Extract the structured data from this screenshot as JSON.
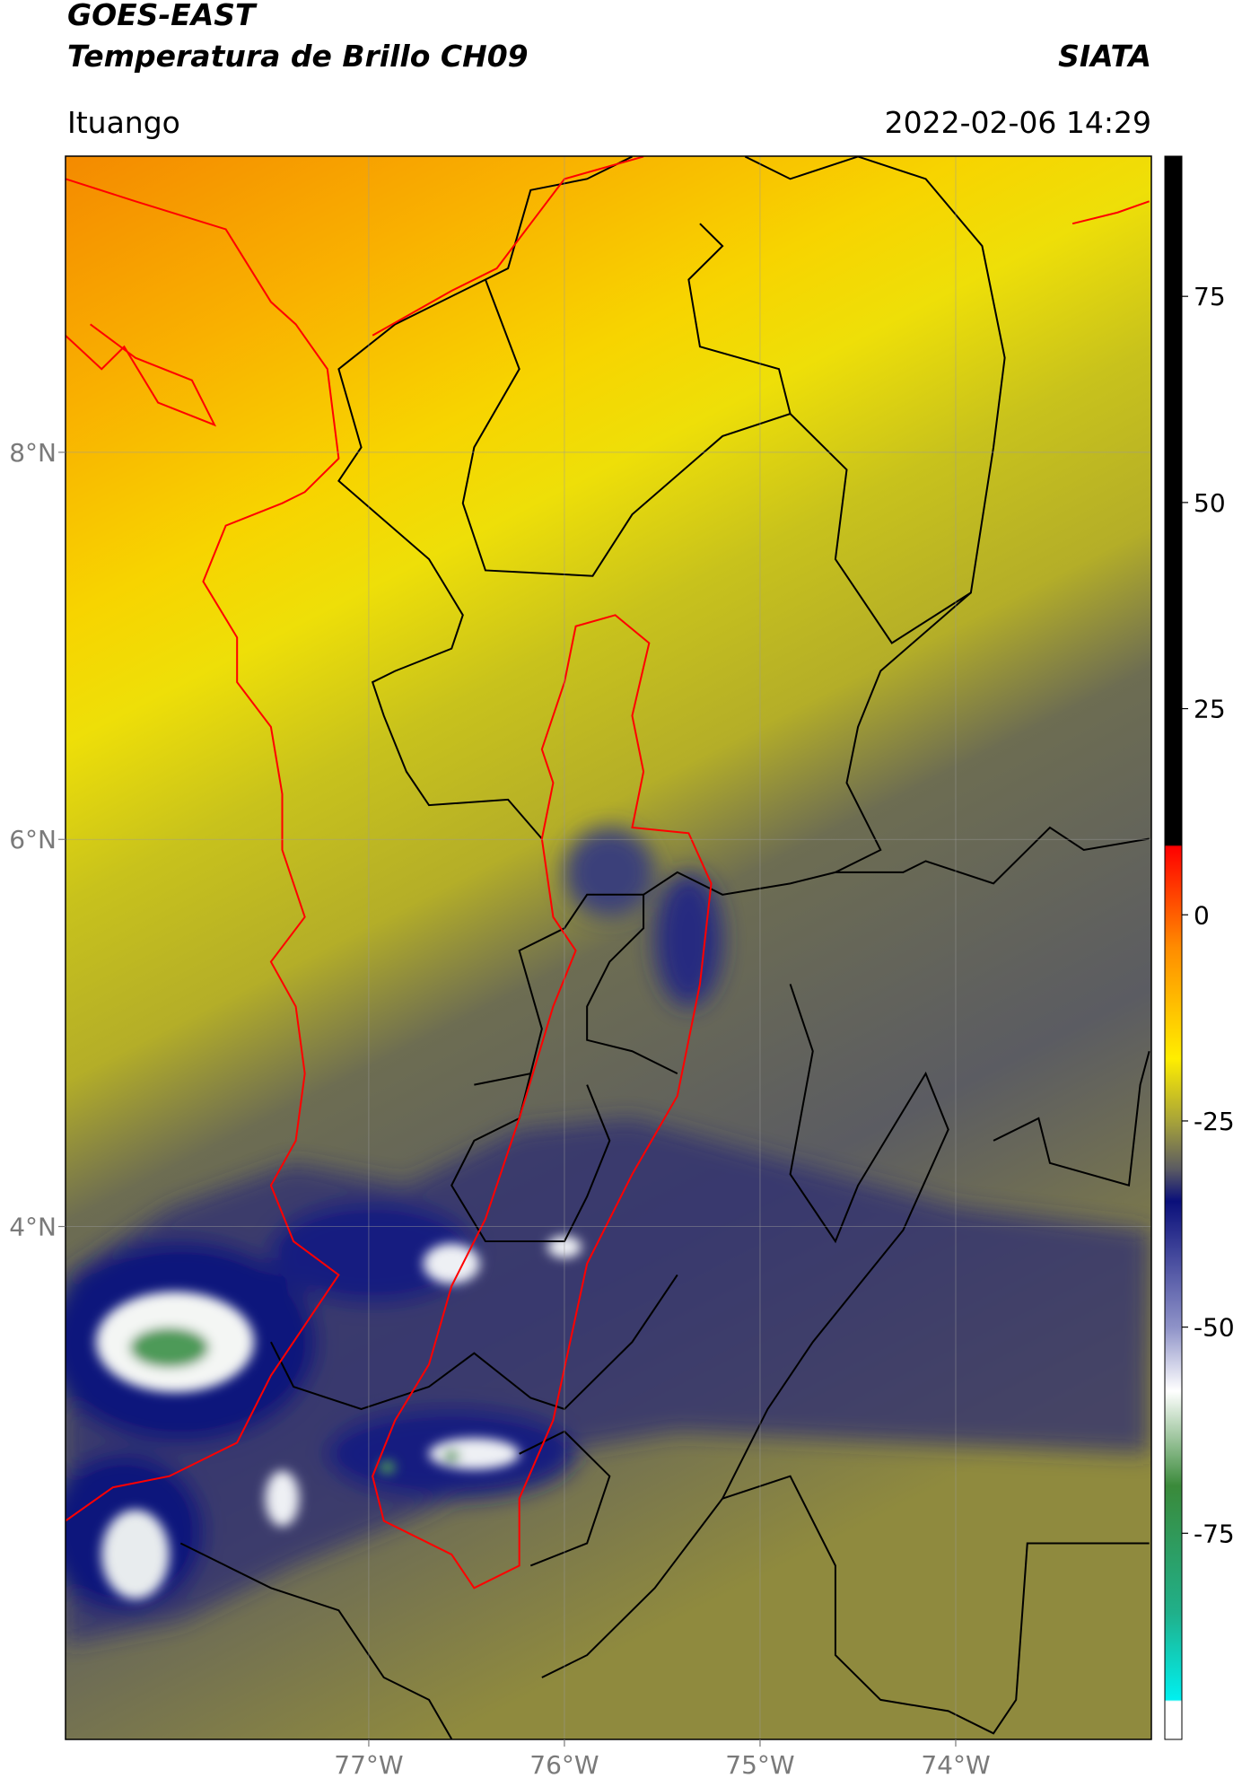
{
  "map": {
    "header": {
      "title": "GOES-EAST",
      "subtitle": "Temperatura de Brillo CH09",
      "source": "SIATA",
      "location": "Ituango",
      "timestamp": "2022-02-06 14:29"
    },
    "ylim": [
      1.35,
      9.53
    ],
    "xlim": [
      -78.55,
      -73.0
    ],
    "yticks": [
      {
        "value": 8,
        "label": "8°N"
      },
      {
        "value": 6,
        "label": "6°N"
      },
      {
        "value": 4,
        "label": "4°N"
      }
    ],
    "xticks": [
      {
        "value": -77,
        "label": "77°W"
      },
      {
        "value": -76,
        "label": "76°W"
      },
      {
        "value": -75,
        "label": "75°W"
      },
      {
        "value": -74,
        "label": "74°W"
      }
    ],
    "grid": true,
    "colorbar": {
      "lim": [
        -100,
        92
      ],
      "ticks": [
        75,
        50,
        25,
        0,
        -25,
        -50,
        -75
      ]
    }
  }
}
